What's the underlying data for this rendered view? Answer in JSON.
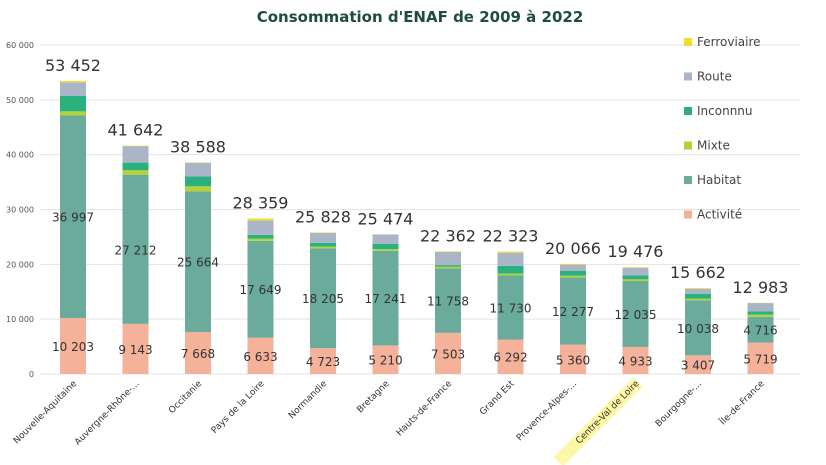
{
  "chart_data": {
    "type": "bar",
    "stacked": true,
    "title": "Consommation d'ENAF de 2009 à 2022",
    "xlabel": "",
    "ylabel": "",
    "ylim": [
      0,
      60000
    ],
    "yticks": [
      0,
      10000,
      20000,
      30000,
      40000,
      50000,
      60000
    ],
    "ytick_labels": [
      "0",
      "10 000",
      "20 000",
      "30 000",
      "40 000",
      "50 000",
      "60 000"
    ],
    "grid": true,
    "legend_position": "right",
    "highlighted_category": "Centre-Val de Loire",
    "highlight_color": "#fdf7a6",
    "categories": [
      "Nouvelle-Aquitaine",
      "Auvergne-Rhône-...",
      "Occitanie",
      "Pays de la Loire",
      "Normandie",
      "Bretagne",
      "Hauts-de-France",
      "Grand Est",
      "Provence-Alpes-...",
      "Centre-Val de Loire",
      "Bourgogne-...",
      "Île-de-France"
    ],
    "totals": [
      53452,
      41642,
      38588,
      28359,
      25828,
      25474,
      22362,
      22323,
      20066,
      19476,
      15662,
      12983
    ],
    "total_labels": [
      "53 452",
      "41 642",
      "38 588",
      "28 359",
      "25 828",
      "25 474",
      "22 362",
      "22 323",
      "20 066",
      "19 476",
      "15 662",
      "12 983"
    ],
    "series": [
      {
        "name": "Activité",
        "color": "#f5b29a",
        "values": [
          10203,
          9143,
          7668,
          6633,
          4723,
          5210,
          7503,
          6292,
          5360,
          4933,
          3407,
          5719
        ],
        "labels": [
          "10 203",
          "9 143",
          "7 668",
          "6 633",
          "4 723",
          "5 210",
          "7 503",
          "6 292",
          "5 360",
          "4 933",
          "3 407",
          "5 719"
        ]
      },
      {
        "name": "Habitat",
        "color": "#6aab9c",
        "values": [
          36997,
          27212,
          25664,
          17649,
          18205,
          17241,
          11758,
          11730,
          12277,
          12035,
          10038,
          4716
        ],
        "labels": [
          "36 997",
          "27 212",
          "25 664",
          "17 649",
          "18 205",
          "17 241",
          "11 758",
          "11 730",
          "12 277",
          "12 035",
          "10 038",
          "4 716"
        ]
      },
      {
        "name": "Mixte",
        "color": "#b5d334",
        "values": [
          700,
          800,
          900,
          400,
          300,
          300,
          300,
          300,
          300,
          300,
          300,
          400
        ],
        "labels": []
      },
      {
        "name": "Inconnnu",
        "color": "#2bb07f",
        "values": [
          2800,
          1400,
          1800,
          700,
          700,
          1000,
          300,
          1400,
          900,
          700,
          900,
          600
        ],
        "labels": []
      },
      {
        "name": "Route",
        "color": "#aab6c8",
        "values": [
          2500,
          3000,
          2500,
          2600,
          1800,
          1700,
          2400,
          2400,
          1100,
          1400,
          900,
          1500
        ],
        "labels": []
      },
      {
        "name": "Ferroviaire",
        "color": "#f2dc2c",
        "values": [
          252,
          87,
          56,
          377,
          100,
          23,
          101,
          201,
          129,
          108,
          117,
          48
        ],
        "labels": []
      }
    ],
    "legend_order": [
      "Ferroviaire",
      "Route",
      "Inconnnu",
      "Mixte",
      "Habitat",
      "Activité"
    ]
  }
}
